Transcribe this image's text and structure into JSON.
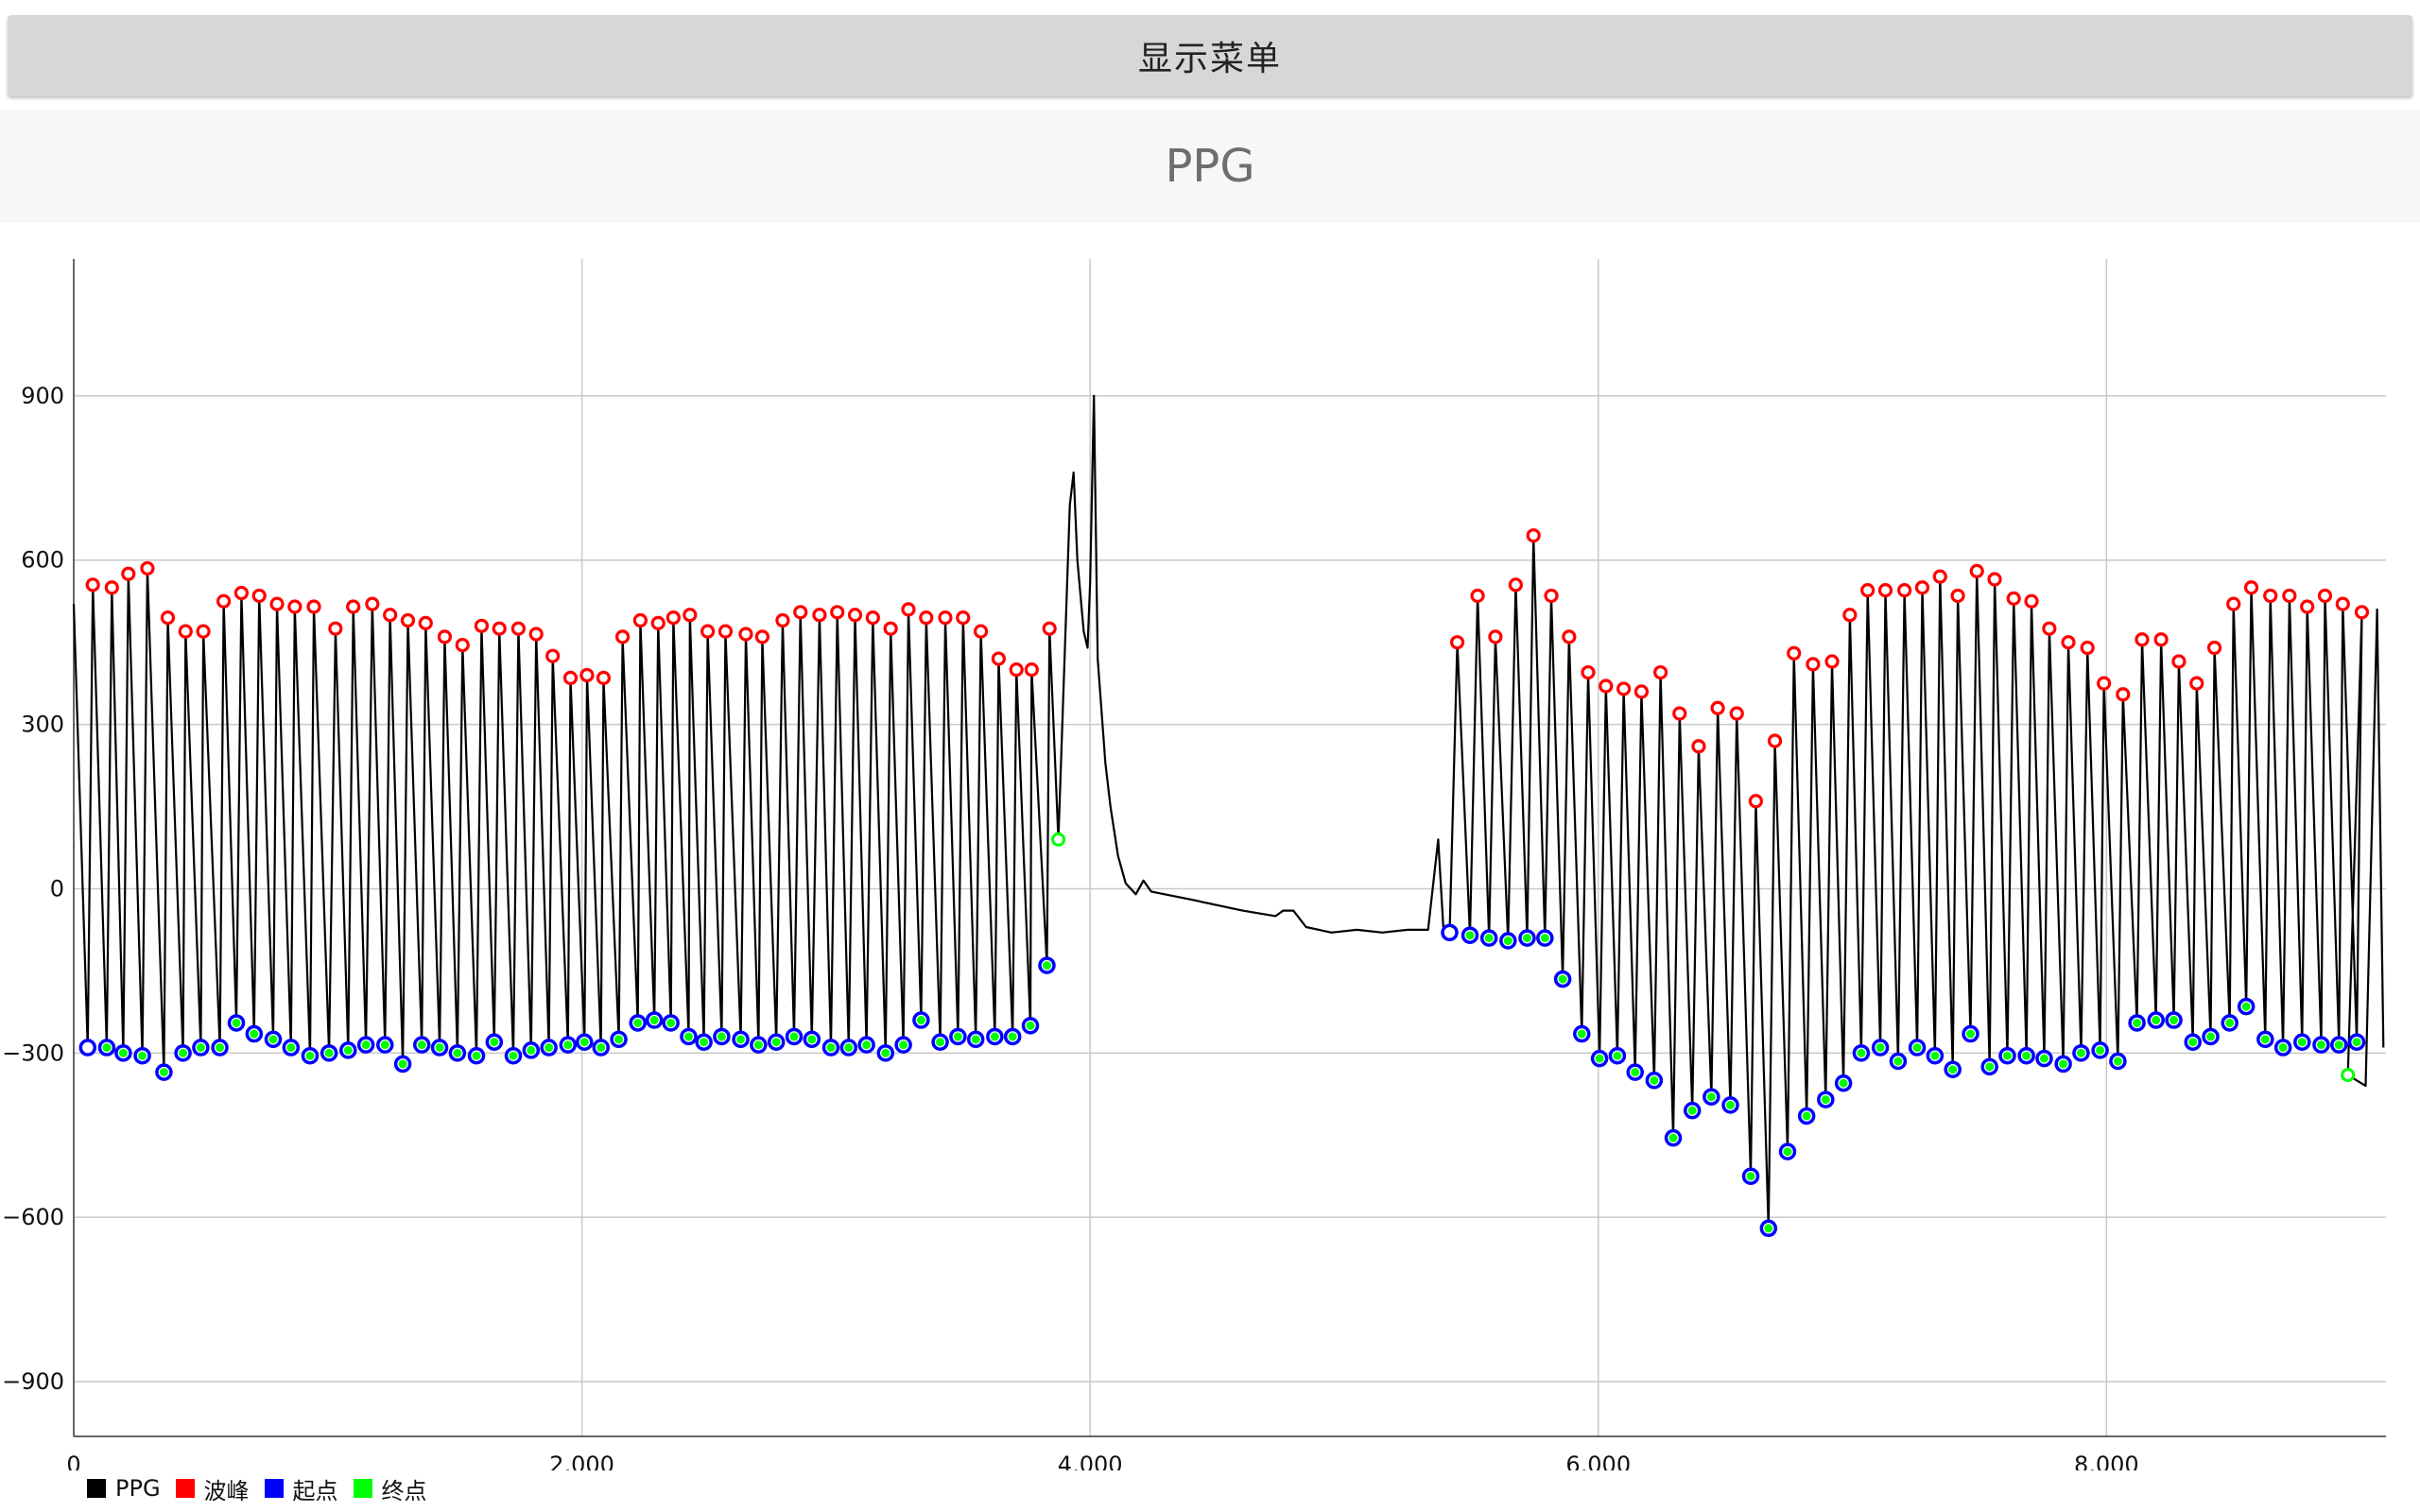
{
  "menu": {
    "show_menu_label": "显示菜单"
  },
  "chart_data": {
    "type": "line",
    "title": "PPG",
    "xlabel": "",
    "ylabel": "",
    "xlim": [
      0,
      9100
    ],
    "ylim": [
      -1000,
      1150
    ],
    "x_ticks": [
      0,
      2000,
      4000,
      6000,
      8000
    ],
    "x_tick_labels": [
      "0",
      "2,000",
      "4,000",
      "6,000",
      "8,000"
    ],
    "y_ticks": [
      -900,
      -600,
      -300,
      0,
      300,
      600,
      900
    ],
    "y_tick_labels": [
      "−900",
      "−600",
      "−300",
      "0",
      "300",
      "600",
      "900"
    ],
    "grid": true,
    "legend_position": "bottom-left",
    "colors": {
      "ppg": "#000000",
      "peak": "#ff0000",
      "onset": "#0000ff",
      "end": "#00ff00"
    },
    "legend": [
      {
        "key": "ppg",
        "label": "PPG"
      },
      {
        "key": "peak",
        "label": "波峰"
      },
      {
        "key": "onset",
        "label": "起点"
      },
      {
        "key": "end",
        "label": "终点"
      }
    ],
    "series": [
      {
        "name": "波峰",
        "kind": "peak",
        "points": [
          [
            75,
            555
          ],
          [
            150,
            550
          ],
          [
            215,
            575
          ],
          [
            290,
            585
          ],
          [
            370,
            495
          ],
          [
            440,
            470
          ],
          [
            510,
            470
          ],
          [
            590,
            525
          ],
          [
            660,
            540
          ],
          [
            730,
            535
          ],
          [
            800,
            520
          ],
          [
            870,
            515
          ],
          [
            945,
            515
          ],
          [
            1030,
            475
          ],
          [
            1100,
            515
          ],
          [
            1175,
            520
          ],
          [
            1245,
            500
          ],
          [
            1315,
            490
          ],
          [
            1385,
            485
          ],
          [
            1460,
            460
          ],
          [
            1530,
            445
          ],
          [
            1605,
            480
          ],
          [
            1675,
            475
          ],
          [
            1750,
            475
          ],
          [
            1820,
            465
          ],
          [
            1885,
            425
          ],
          [
            1955,
            385
          ],
          [
            2020,
            390
          ],
          [
            2085,
            385
          ],
          [
            2160,
            460
          ],
          [
            2230,
            490
          ],
          [
            2300,
            485
          ],
          [
            2360,
            495
          ],
          [
            2425,
            500
          ],
          [
            2495,
            470
          ],
          [
            2565,
            470
          ],
          [
            2645,
            465
          ],
          [
            2710,
            460
          ],
          [
            2790,
            490
          ],
          [
            2860,
            505
          ],
          [
            2935,
            500
          ],
          [
            3005,
            505
          ],
          [
            3075,
            500
          ],
          [
            3145,
            495
          ],
          [
            3215,
            475
          ],
          [
            3285,
            510
          ],
          [
            3355,
            495
          ],
          [
            3430,
            495
          ],
          [
            3500,
            495
          ],
          [
            3570,
            470
          ],
          [
            3640,
            420
          ],
          [
            3710,
            400
          ],
          [
            3770,
            400
          ],
          [
            3840,
            475
          ],
          [
            5445,
            450
          ],
          [
            5525,
            535
          ],
          [
            5595,
            460
          ],
          [
            5675,
            555
          ],
          [
            5745,
            645
          ],
          [
            5815,
            535
          ],
          [
            5885,
            460
          ],
          [
            5960,
            395
          ],
          [
            6030,
            370
          ],
          [
            6100,
            365
          ],
          [
            6170,
            360
          ],
          [
            6245,
            395
          ],
          [
            6320,
            320
          ],
          [
            6395,
            260
          ],
          [
            6470,
            330
          ],
          [
            6545,
            320
          ],
          [
            6620,
            160
          ],
          [
            6695,
            270
          ],
          [
            6770,
            430
          ],
          [
            6845,
            410
          ],
          [
            6920,
            415
          ],
          [
            6990,
            500
          ],
          [
            7060,
            545
          ],
          [
            7130,
            545
          ],
          [
            7205,
            545
          ],
          [
            7275,
            550
          ],
          [
            7345,
            570
          ],
          [
            7415,
            535
          ],
          [
            7490,
            580
          ],
          [
            7560,
            565
          ],
          [
            7635,
            530
          ],
          [
            7705,
            525
          ],
          [
            7775,
            475
          ],
          [
            7850,
            450
          ],
          [
            7925,
            440
          ],
          [
            7990,
            375
          ],
          [
            8065,
            355
          ],
          [
            8140,
            455
          ],
          [
            8215,
            455
          ],
          [
            8285,
            415
          ],
          [
            8355,
            375
          ],
          [
            8425,
            440
          ],
          [
            8500,
            520
          ],
          [
            8570,
            550
          ],
          [
            8645,
            535
          ],
          [
            8720,
            535
          ],
          [
            8790,
            515
          ],
          [
            8860,
            535
          ],
          [
            8930,
            520
          ],
          [
            9005,
            505
          ]
        ]
      },
      {
        "name": "起点",
        "kind": "onset",
        "points": [
          [
            55,
            -290
          ],
          [
            130,
            -290
          ],
          [
            195,
            -300
          ],
          [
            270,
            -305
          ],
          [
            355,
            -335
          ],
          [
            430,
            -300
          ],
          [
            500,
            -290
          ],
          [
            575,
            -290
          ],
          [
            640,
            -245
          ],
          [
            710,
            -265
          ],
          [
            785,
            -275
          ],
          [
            855,
            -290
          ],
          [
            930,
            -305
          ],
          [
            1005,
            -300
          ],
          [
            1080,
            -295
          ],
          [
            1150,
            -285
          ],
          [
            1225,
            -285
          ],
          [
            1295,
            -320
          ],
          [
            1370,
            -285
          ],
          [
            1440,
            -290
          ],
          [
            1510,
            -300
          ],
          [
            1585,
            -305
          ],
          [
            1655,
            -280
          ],
          [
            1730,
            -305
          ],
          [
            1800,
            -295
          ],
          [
            1870,
            -290
          ],
          [
            1945,
            -285
          ],
          [
            2010,
            -280
          ],
          [
            2075,
            -290
          ],
          [
            2145,
            -275
          ],
          [
            2220,
            -245
          ],
          [
            2285,
            -240
          ],
          [
            2350,
            -245
          ],
          [
            2420,
            -270
          ],
          [
            2480,
            -280
          ],
          [
            2550,
            -270
          ],
          [
            2625,
            -275
          ],
          [
            2695,
            -285
          ],
          [
            2765,
            -280
          ],
          [
            2835,
            -270
          ],
          [
            2905,
            -275
          ],
          [
            2980,
            -290
          ],
          [
            3050,
            -290
          ],
          [
            3120,
            -285
          ],
          [
            3195,
            -300
          ],
          [
            3265,
            -285
          ],
          [
            3335,
            -240
          ],
          [
            3410,
            -280
          ],
          [
            3480,
            -270
          ],
          [
            3550,
            -275
          ],
          [
            3625,
            -270
          ],
          [
            3695,
            -270
          ],
          [
            3765,
            -250
          ],
          [
            3830,
            -140
          ],
          [
            5415,
            -80
          ],
          [
            5495,
            -85
          ],
          [
            5570,
            -90
          ],
          [
            5645,
            -95
          ],
          [
            5720,
            -90
          ],
          [
            5790,
            -90
          ],
          [
            5860,
            -165
          ],
          [
            5935,
            -265
          ],
          [
            6005,
            -310
          ],
          [
            6075,
            -305
          ],
          [
            6145,
            -335
          ],
          [
            6220,
            -350
          ],
          [
            6295,
            -455
          ],
          [
            6370,
            -405
          ],
          [
            6445,
            -380
          ],
          [
            6520,
            -395
          ],
          [
            6600,
            -525
          ],
          [
            6670,
            -620
          ],
          [
            6745,
            -480
          ],
          [
            6820,
            -415
          ],
          [
            6895,
            -385
          ],
          [
            6965,
            -355
          ],
          [
            7035,
            -300
          ],
          [
            7110,
            -290
          ],
          [
            7180,
            -315
          ],
          [
            7255,
            -290
          ],
          [
            7325,
            -305
          ],
          [
            7395,
            -330
          ],
          [
            7465,
            -265
          ],
          [
            7540,
            -325
          ],
          [
            7610,
            -305
          ],
          [
            7685,
            -305
          ],
          [
            7755,
            -310
          ],
          [
            7830,
            -320
          ],
          [
            7900,
            -300
          ],
          [
            7975,
            -295
          ],
          [
            8045,
            -315
          ],
          [
            8120,
            -245
          ],
          [
            8195,
            -240
          ],
          [
            8265,
            -240
          ],
          [
            8340,
            -280
          ],
          [
            8410,
            -270
          ],
          [
            8485,
            -245
          ],
          [
            8550,
            -215
          ],
          [
            8625,
            -275
          ],
          [
            8695,
            -290
          ],
          [
            8770,
            -280
          ],
          [
            8845,
            -285
          ],
          [
            8915,
            -285
          ],
          [
            8985,
            -280
          ]
        ]
      },
      {
        "name": "终点",
        "kind": "end",
        "points": [
          [
            3875,
            90
          ],
          [
            8950,
            -340
          ]
        ]
      }
    ]
  }
}
